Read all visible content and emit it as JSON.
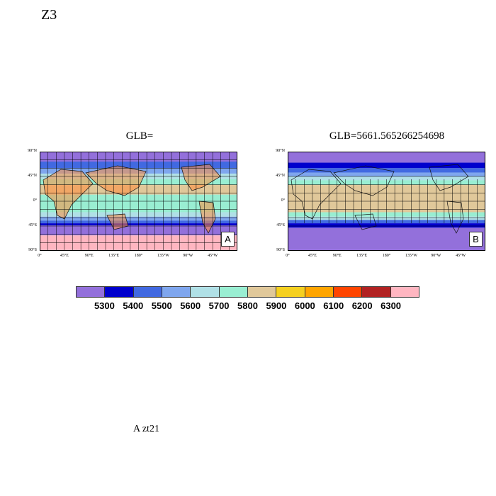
{
  "page_title": "Z3",
  "footer_text": "A  zt21",
  "panels": [
    {
      "title": "GLB=",
      "letter": "A",
      "lat_ticks": [
        "90°N",
        "45°N",
        "0°",
        "45°S",
        "90°S"
      ],
      "lon_ticks": [
        "0°",
        "45°E",
        "90°E",
        "135°E",
        "180°",
        "135°W",
        "90°W",
        "45°W"
      ],
      "bands": [
        {
          "from_lat": 90,
          "to_lat": 72,
          "color": "#9370db"
        },
        {
          "from_lat": 72,
          "to_lat": 60,
          "color": "#4169e1"
        },
        {
          "from_lat": 60,
          "to_lat": 50,
          "color": "#7fa6ee"
        },
        {
          "from_lat": 50,
          "to_lat": 40,
          "color": "#b0e0e6"
        },
        {
          "from_lat": 40,
          "to_lat": 30,
          "color": "#99eed2"
        },
        {
          "from_lat": 30,
          "to_lat": 12,
          "color": "#e0c89a"
        },
        {
          "from_lat": 12,
          "to_lat": -20,
          "color": "#99eed2"
        },
        {
          "from_lat": -20,
          "to_lat": -28,
          "color": "#b0e0e6"
        },
        {
          "from_lat": -28,
          "to_lat": -35,
          "color": "#7fa6ee"
        },
        {
          "from_lat": -35,
          "to_lat": -40,
          "color": "#4169e1"
        },
        {
          "from_lat": -40,
          "to_lat": -44,
          "color": "#0000cd"
        },
        {
          "from_lat": -44,
          "to_lat": -62,
          "color": "#9370db"
        },
        {
          "from_lat": -62,
          "to_lat": -90,
          "color": "#ffb6c1"
        }
      ]
    },
    {
      "title": "GLB=5661.565266254698",
      "letter": "B",
      "lat_ticks": [
        "90°N",
        "45°N",
        "0°",
        "45°S",
        "90°S"
      ],
      "lon_ticks": [
        "0°",
        "45°E",
        "90°E",
        "135°E",
        "180°",
        "135°W",
        "90°W",
        "45°W"
      ],
      "bands": [
        {
          "from_lat": 90,
          "to_lat": 70,
          "color": "#9370db"
        },
        {
          "from_lat": 70,
          "to_lat": 60,
          "color": "#0000cd"
        },
        {
          "from_lat": 60,
          "to_lat": 52,
          "color": "#4169e1"
        },
        {
          "from_lat": 52,
          "to_lat": 45,
          "color": "#7fa6ee"
        },
        {
          "from_lat": 45,
          "to_lat": 38,
          "color": "#b0e0e6"
        },
        {
          "from_lat": 38,
          "to_lat": 30,
          "color": "#99eed2"
        },
        {
          "from_lat": 30,
          "to_lat": -20,
          "color": "#e0c89a"
        },
        {
          "from_lat": -20,
          "to_lat": -28,
          "color": "#99eed2"
        },
        {
          "from_lat": -28,
          "to_lat": -34,
          "color": "#b0e0e6"
        },
        {
          "from_lat": -34,
          "to_lat": -40,
          "color": "#4169e1"
        },
        {
          "from_lat": -40,
          "to_lat": -48,
          "color": "#0000cd"
        },
        {
          "from_lat": -48,
          "to_lat": -90,
          "color": "#9370db"
        }
      ]
    }
  ],
  "colorbar": {
    "colors": [
      "#9370db",
      "#0000cd",
      "#4169e1",
      "#7fa6ee",
      "#b0e0e6",
      "#99eed2",
      "#e0c89a",
      "#f5d020",
      "#ffa500",
      "#ff4500",
      "#b22222",
      "#ffb6c1"
    ],
    "labels": [
      "5300",
      "5400",
      "5500",
      "5600",
      "5700",
      "5800",
      "5900",
      "6000",
      "6100",
      "6200",
      "6300"
    ]
  }
}
